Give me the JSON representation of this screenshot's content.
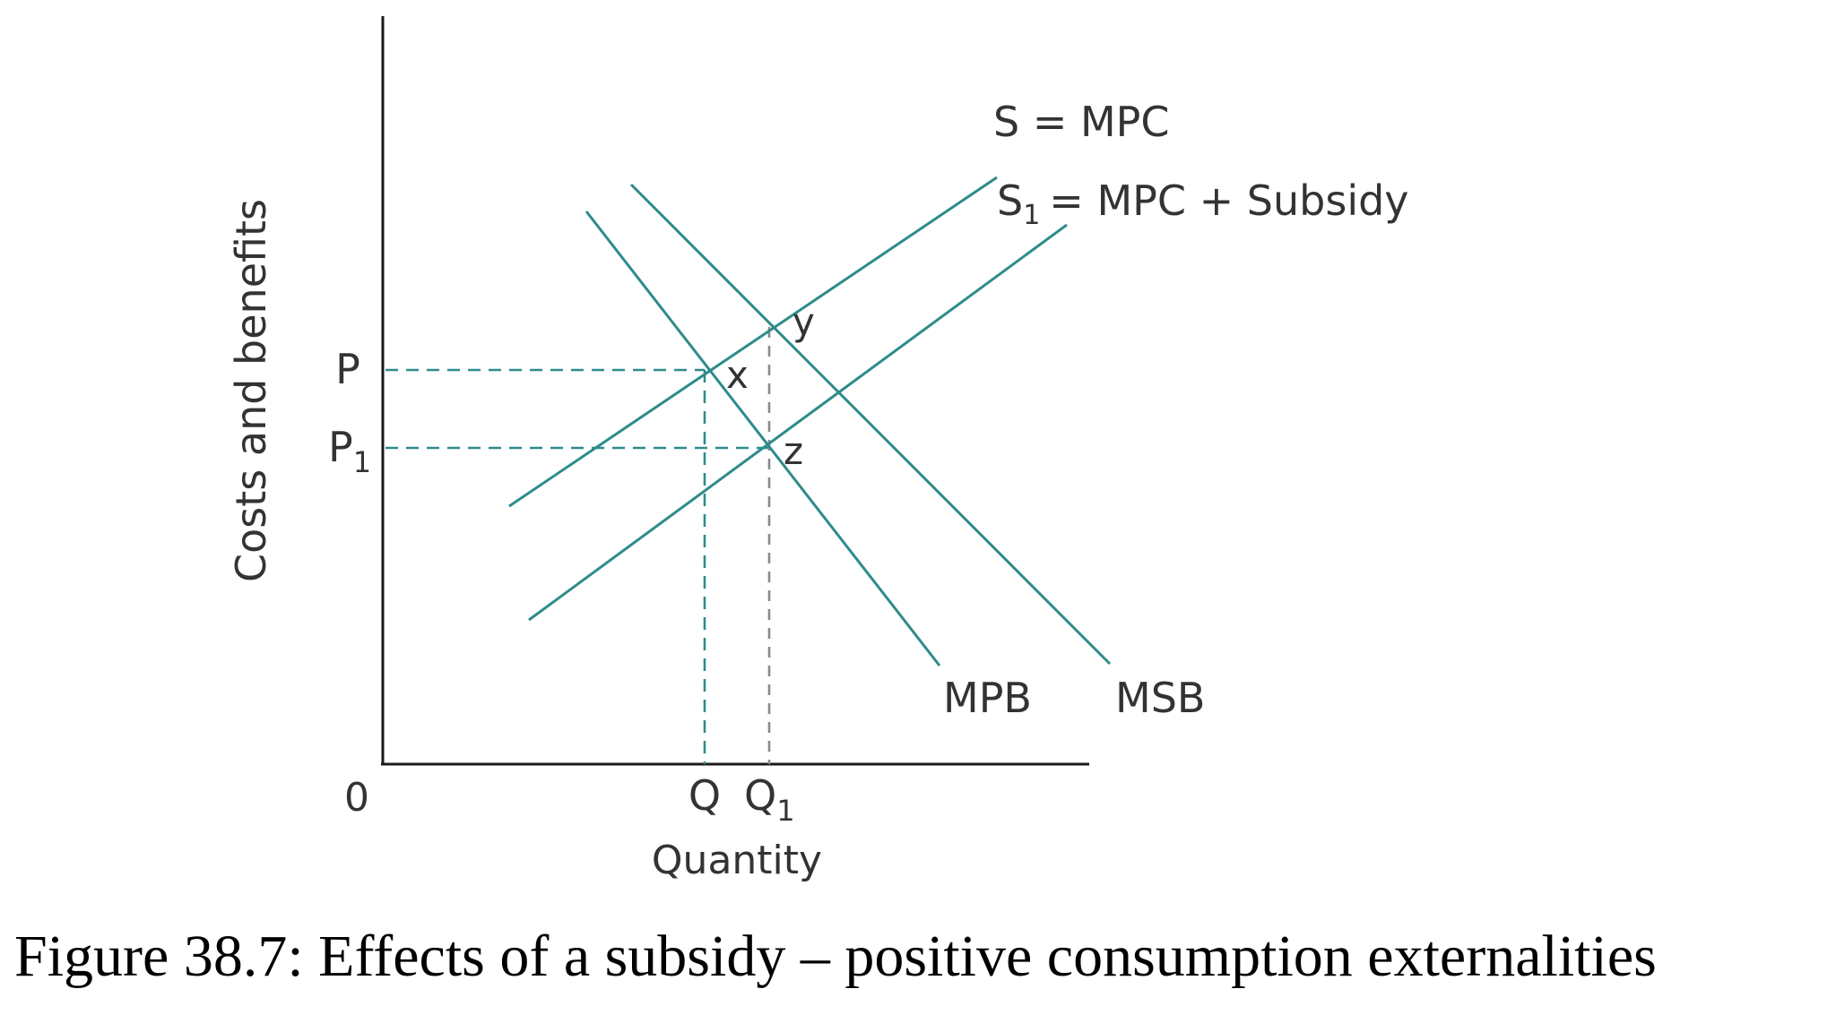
{
  "caption": "Figure 38.7: Effects of a subsidy – positive consumption externalities",
  "colors": {
    "curves": "#2e8b8b",
    "axes": "#1a1a1a",
    "text": "#333333",
    "q1_guide": "#8a8a8a"
  },
  "diagram": {
    "y_axis_label": "Costs and benefits",
    "x_axis_label": "Quantity",
    "origin_label": "0",
    "price_labels": {
      "p": "P",
      "p1_base": "P",
      "p1_sub": "1"
    },
    "quantity_labels": {
      "q": "Q",
      "q1_base": "Q",
      "q1_sub": "1"
    },
    "curve_labels": {
      "s_mpc": "S = MPC",
      "s1_base": "S",
      "s1_sub": "1",
      "s1_rest": "= MPC + Subsidy",
      "mpb": "MPB",
      "msb": "MSB"
    },
    "point_labels": {
      "x": "x",
      "y": "y",
      "z": "z"
    }
  }
}
